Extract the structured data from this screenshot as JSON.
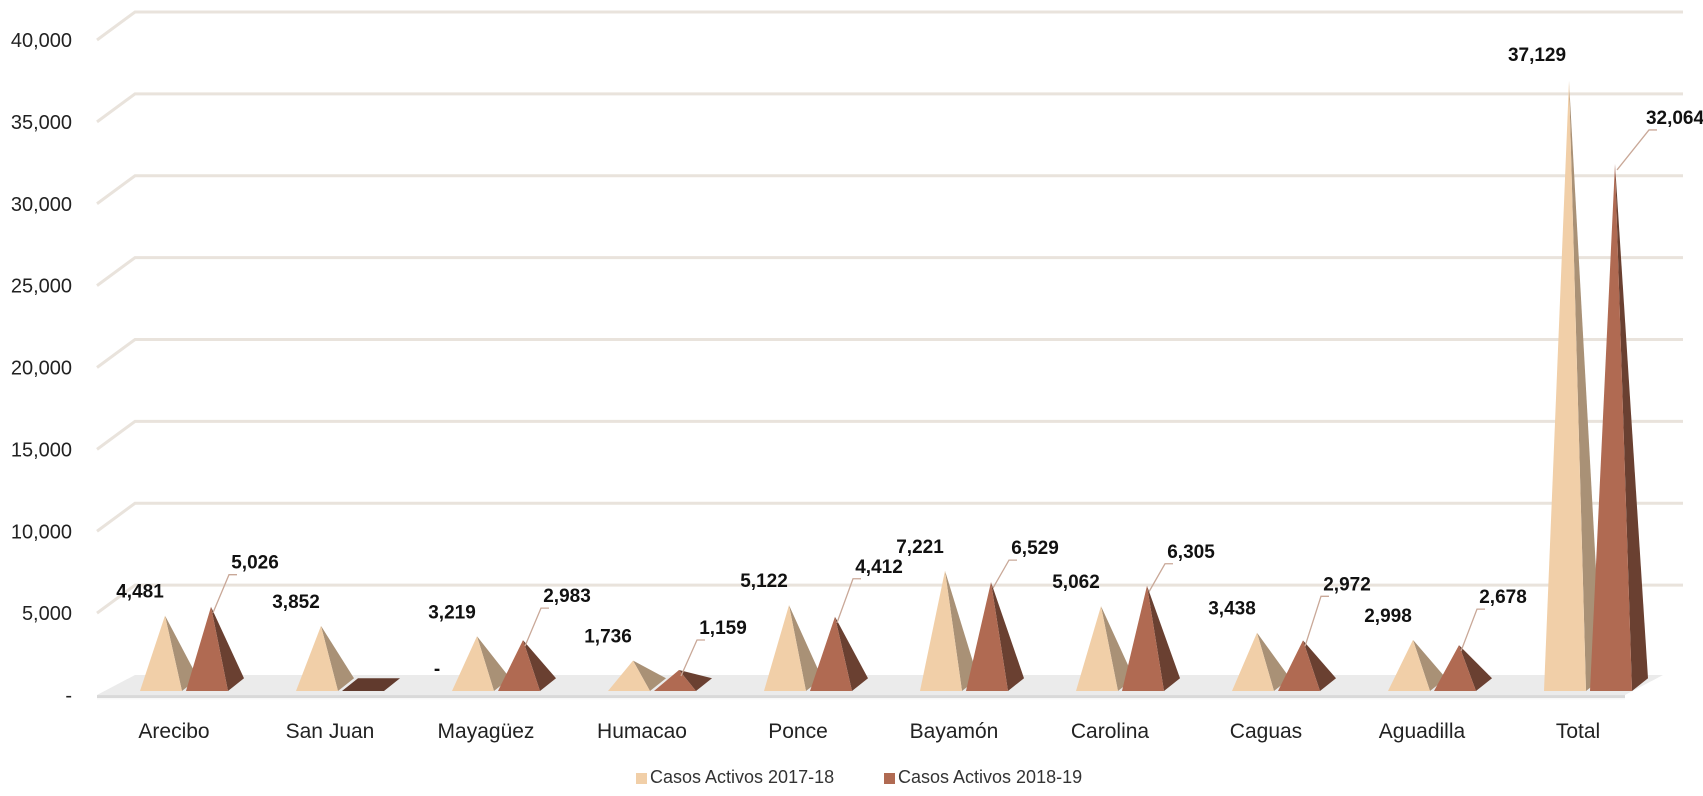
{
  "chart_data": {
    "type": "bar",
    "style": "3d-pyramid",
    "categories": [
      "Arecibo",
      "San Juan",
      "Mayagüez",
      "Humacao",
      "Ponce",
      "Bayamón",
      "Carolina",
      "Caguas",
      "Aguadilla",
      "Total"
    ],
    "series": [
      {
        "name": "Casos Activos 2017-18",
        "color": "#f1cfa8",
        "values": [
          4481,
          3852,
          3219,
          1736,
          5122,
          7221,
          5062,
          3438,
          2998,
          37129
        ],
        "labels": [
          "4,481",
          "3,852",
          "3,219",
          "1,736",
          "5,122",
          "7,221",
          "5,062",
          "3,438",
          "2,998",
          "37,129"
        ]
      },
      {
        "name": "Casos Activos 2018-19",
        "color": "#b06a52",
        "values": [
          5026,
          0,
          2983,
          1159,
          4412,
          6529,
          6305,
          2972,
          2678,
          32064
        ],
        "labels": [
          "5,026",
          "-",
          "2,983",
          "1,159",
          "4,412",
          "6,529",
          "6,305",
          "2,972",
          "2,678",
          "32,064"
        ]
      }
    ],
    "yticks": [
      "-",
      "5,000",
      "10,000",
      "15,000",
      "20,000",
      "25,000",
      "30,000",
      "35,000",
      "40,000"
    ],
    "ylim": [
      0,
      40000
    ],
    "grid": true,
    "legend_position": "bottom"
  }
}
